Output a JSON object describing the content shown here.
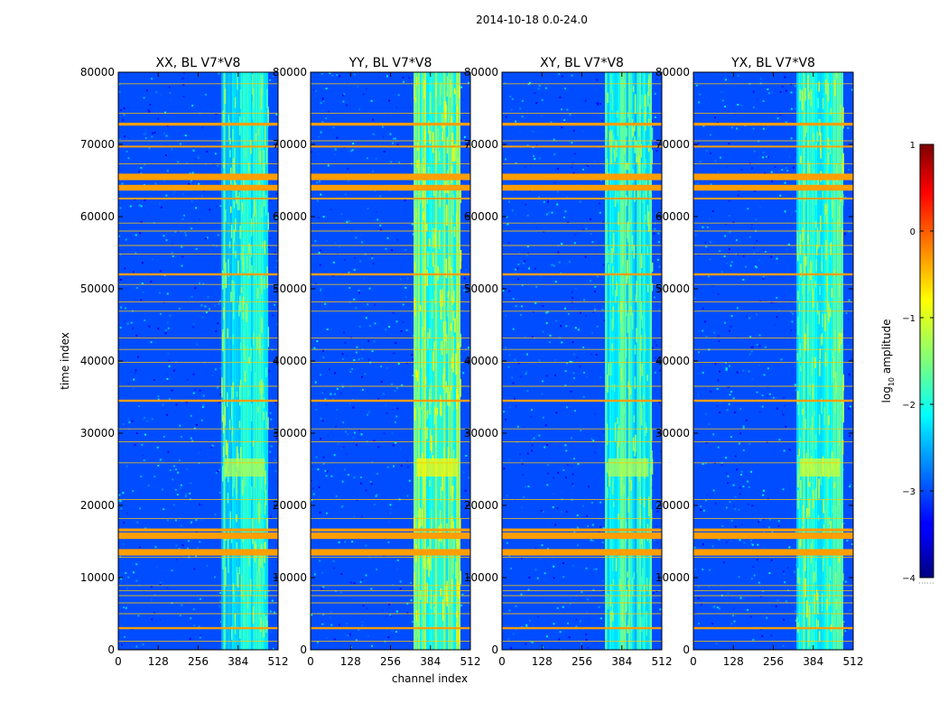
{
  "chart_data": {
    "type": "heatmap",
    "suptitle": "2014-10-18 0.0-24.0",
    "xlabel": "channel index",
    "ylabel": "time index",
    "xlim": [
      0,
      512
    ],
    "ylim": [
      0,
      80000
    ],
    "x_ticks": [
      0,
      128,
      256,
      384,
      512
    ],
    "y_ticks": [
      0,
      10000,
      20000,
      30000,
      40000,
      50000,
      60000,
      70000,
      80000
    ],
    "panels": [
      {
        "title": "XX, BL V7*V8",
        "band_strength": 1.0
      },
      {
        "title": "YY, BL V7*V8",
        "band_strength": 1.15
      },
      {
        "title": "XY, BL V7*V8",
        "band_strength": 1.0
      },
      {
        "title": "YX, BL V7*V8",
        "band_strength": 1.05
      }
    ],
    "bright_channel_band": [
      330,
      480
    ],
    "strong_rfi_rows": [
      {
        "time": 3000,
        "thickness": 300
      },
      {
        "time": 13500,
        "thickness": 900
      },
      {
        "time": 15800,
        "thickness": 900
      },
      {
        "time": 16600,
        "thickness": 400
      },
      {
        "time": 34500,
        "thickness": 300
      },
      {
        "time": 52000,
        "thickness": 300
      },
      {
        "time": 62500,
        "thickness": 250
      },
      {
        "time": 64000,
        "thickness": 800
      },
      {
        "time": 65500,
        "thickness": 900
      },
      {
        "time": 69700,
        "thickness": 250
      },
      {
        "time": 72800,
        "thickness": 400
      }
    ],
    "weak_rfi_rows": [
      1200,
      5000,
      6500,
      7500,
      8200,
      8900,
      12800,
      18200,
      20800,
      25900,
      28800,
      30600,
      36500,
      39800,
      41600,
      43200,
      46900,
      48200,
      50600,
      54800,
      56000,
      58000,
      59100,
      67300,
      70500,
      74300,
      78400
    ],
    "colorbar": {
      "label_main": "log",
      "label_sub": "10",
      "label_rest": " amplitude",
      "range": [
        -4,
        1
      ],
      "ticks": [
        -4,
        -3,
        -2,
        -1,
        0,
        1
      ],
      "tick_labels": [
        "−4",
        "−3",
        "−2",
        "−1",
        "0",
        "1"
      ],
      "colormap": "jet"
    }
  }
}
